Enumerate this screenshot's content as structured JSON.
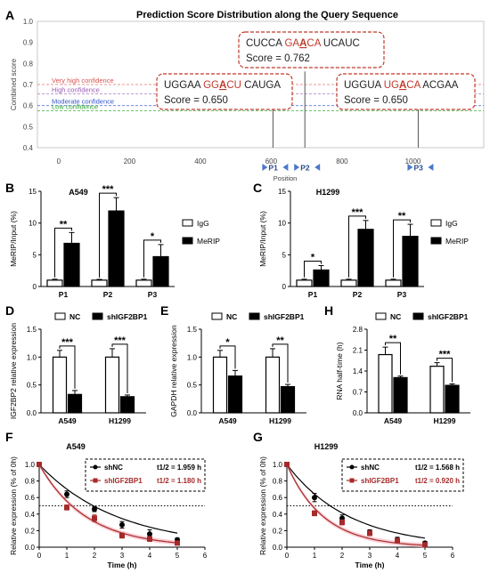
{
  "panel_letters": {
    "A": "A",
    "B": "B",
    "C": "C",
    "D": "D",
    "E": "E",
    "H": "H",
    "F": "F",
    "G": "G"
  },
  "chart_data": [
    {
      "id": "A",
      "type": "line",
      "title": "Prediction Score Distribution along the Query Sequence",
      "xlabel": "Position",
      "ylabel": "Combined score",
      "xlim": [
        -60,
        1200
      ],
      "ylim": [
        0.4,
        1.0
      ],
      "xticks": [
        0,
        200,
        400,
        600,
        800,
        1000
      ],
      "yticks": [
        0.4,
        0.5,
        0.6,
        0.7,
        0.8,
        0.9,
        1.0
      ],
      "thresholds": [
        {
          "name": "Very high confidence",
          "value": 0.7,
          "color": "#d9534f"
        },
        {
          "name": "High confidence",
          "value": 0.655,
          "color": "#9b59b6"
        },
        {
          "name": "Moderate confidence",
          "value": 0.6,
          "color": "#3355cc"
        },
        {
          "name": "Low confidence",
          "value": 0.575,
          "color": "#33aa33"
        }
      ],
      "sites": [
        {
          "label": "P1",
          "position": 605,
          "score": 0.65,
          "seq_pre": "UGGAA ",
          "seq_red1": "GG",
          "seq_key": "A",
          "seq_red2": "CU",
          "seq_post": " CAUGA",
          "score_text": "Score = 0.650"
        },
        {
          "label": "P2",
          "position": 695,
          "score": 0.762,
          "seq_pre": "CUCCA ",
          "seq_red1": "GA",
          "seq_key": "A",
          "seq_red2": "CA",
          "seq_post": " UCAUC",
          "score_text": "Score = 0.762"
        },
        {
          "label": "P3",
          "position": 1015,
          "score": 0.65,
          "seq_pre": "UGGUA ",
          "seq_red1": "UG",
          "seq_key": "A",
          "seq_red2": "CA",
          "seq_post": " ACGAA",
          "score_text": "Score = 0.650"
        }
      ]
    },
    {
      "id": "B",
      "type": "bar",
      "title": "A549",
      "ylabel": "MeRIP/Input (%)",
      "categories": [
        "P1",
        "P2",
        "P3"
      ],
      "ylim": [
        0,
        15
      ],
      "yticks": [
        0,
        5,
        10,
        15
      ],
      "series": [
        {
          "name": "IgG",
          "color": "#ffffff",
          "values": [
            1.0,
            1.0,
            1.0
          ],
          "errors": [
            0.15,
            0.12,
            0.15
          ]
        },
        {
          "name": "MeRIP",
          "color": "#000000",
          "values": [
            6.8,
            11.9,
            4.7
          ],
          "errors": [
            1.7,
            2.1,
            1.9
          ]
        }
      ],
      "significance": [
        "**",
        "***",
        "*"
      ]
    },
    {
      "id": "C",
      "type": "bar",
      "title": "H1299",
      "ylabel": "MeRIP/Input (%)",
      "categories": [
        "P1",
        "P2",
        "P3"
      ],
      "ylim": [
        0,
        15
      ],
      "yticks": [
        0,
        5,
        10,
        15
      ],
      "series": [
        {
          "name": "IgG",
          "color": "#ffffff",
          "values": [
            1.0,
            1.0,
            1.0
          ],
          "errors": [
            0.15,
            0.15,
            0.15
          ]
        },
        {
          "name": "MeRIP",
          "color": "#000000",
          "values": [
            2.6,
            9.0,
            7.9
          ],
          "errors": [
            0.7,
            1.4,
            1.9
          ]
        }
      ],
      "significance": [
        "*",
        "***",
        "**"
      ]
    },
    {
      "id": "D",
      "type": "bar",
      "ylabel": "IGF2BP2 relative expression",
      "categories": [
        "A549",
        "H1299"
      ],
      "ylim": [
        0,
        1.5
      ],
      "yticks": [
        "0.0",
        "0.5",
        "1.0",
        "1.5"
      ],
      "series": [
        {
          "name": "NC",
          "color": "#ffffff",
          "values": [
            1.0,
            1.0
          ],
          "errors": [
            0.12,
            0.15
          ]
        },
        {
          "name": "shIGF2BP1",
          "color": "#000000",
          "values": [
            0.33,
            0.29
          ],
          "errors": [
            0.07,
            0.03
          ]
        }
      ],
      "significance": [
        "***",
        "***"
      ]
    },
    {
      "id": "E",
      "type": "bar",
      "ylabel": "GAPDH relative expression",
      "categories": [
        "A549",
        "H1299"
      ],
      "ylim": [
        0,
        1.5
      ],
      "yticks": [
        "0.0",
        "0.5",
        "1.0",
        "1.5"
      ],
      "series": [
        {
          "name": "NC",
          "color": "#ffffff",
          "values": [
            1.0,
            1.0
          ],
          "errors": [
            0.12,
            0.15
          ]
        },
        {
          "name": "shIGF2BP1",
          "color": "#000000",
          "values": [
            0.66,
            0.47
          ],
          "errors": [
            0.1,
            0.04
          ]
        }
      ],
      "significance": [
        "*",
        "**"
      ]
    },
    {
      "id": "H",
      "type": "bar",
      "ylabel": "RNA half-time (h)",
      "categories": [
        "A549",
        "H1299"
      ],
      "ylim": [
        0.0,
        2.8
      ],
      "yticks": [
        "0.0",
        "0.7",
        "1.4",
        "2.1",
        "2.8"
      ],
      "series": [
        {
          "name": "NC",
          "color": "#ffffff",
          "values": [
            1.95,
            1.56
          ],
          "errors": [
            0.25,
            0.12
          ]
        },
        {
          "name": "shIGF2BP1",
          "color": "#000000",
          "values": [
            1.18,
            0.92
          ],
          "errors": [
            0.05,
            0.05
          ]
        }
      ],
      "significance": [
        "**",
        "***"
      ]
    },
    {
      "id": "F",
      "type": "scatter",
      "title": "A549",
      "xlabel": "Time (h)",
      "ylabel": "Relative expression (% of 0h)",
      "xlim": [
        0,
        6
      ],
      "ylim": [
        0,
        1.0
      ],
      "xticks": [
        0,
        1,
        2,
        3,
        4,
        5,
        6
      ],
      "yticks": [
        "0.0",
        "0.2",
        "0.4",
        "0.6",
        "0.8",
        "1.0"
      ],
      "reference_line": 0.5,
      "series": [
        {
          "name": "shNC",
          "color": "#000000",
          "marker": "circle",
          "halflife_label": "t1/2 = 1.959 h",
          "x": [
            0,
            1,
            2,
            3,
            4,
            5
          ],
          "y": [
            1.0,
            0.64,
            0.46,
            0.27,
            0.16,
            0.09
          ],
          "errors": [
            0.0,
            0.04,
            0.03,
            0.04,
            0.05,
            0.02
          ]
        },
        {
          "name": "shIGF2BP1",
          "color": "#a52a2a",
          "marker": "square",
          "halflife_label": "t1/2 = 1.180 h",
          "x": [
            0,
            1,
            2,
            3,
            4,
            5
          ],
          "y": [
            1.0,
            0.48,
            0.35,
            0.14,
            0.1,
            0.05
          ],
          "errors": [
            0.0,
            0.03,
            0.04,
            0.03,
            0.03,
            0.02
          ]
        }
      ]
    },
    {
      "id": "G",
      "type": "scatter",
      "title": "H1299",
      "xlabel": "Time (h)",
      "ylabel": "Relative expression (% of 0h)",
      "xlim": [
        0,
        6
      ],
      "ylim": [
        0,
        1.0
      ],
      "xticks": [
        0,
        1,
        2,
        3,
        4,
        5,
        6
      ],
      "yticks": [
        "0.0",
        "0.2",
        "0.4",
        "0.6",
        "0.8",
        "1.0"
      ],
      "reference_line": 0.5,
      "series": [
        {
          "name": "shNC",
          "color": "#000000",
          "marker": "circle",
          "halflife_label": "t1/2 = 1.568 h",
          "x": [
            0,
            1,
            2,
            3,
            4,
            5
          ],
          "y": [
            1.0,
            0.6,
            0.35,
            0.18,
            0.09,
            0.05
          ],
          "errors": [
            0.0,
            0.05,
            0.04,
            0.03,
            0.03,
            0.02
          ]
        },
        {
          "name": "shIGF2BP1",
          "color": "#a52a2a",
          "marker": "square",
          "halflife_label": "t1/2 = 0.920 h",
          "x": [
            0,
            1,
            2,
            3,
            4,
            5
          ],
          "y": [
            1.0,
            0.41,
            0.3,
            0.17,
            0.08,
            0.03
          ],
          "errors": [
            0.0,
            0.03,
            0.03,
            0.03,
            0.02,
            0.02
          ]
        }
      ]
    }
  ]
}
